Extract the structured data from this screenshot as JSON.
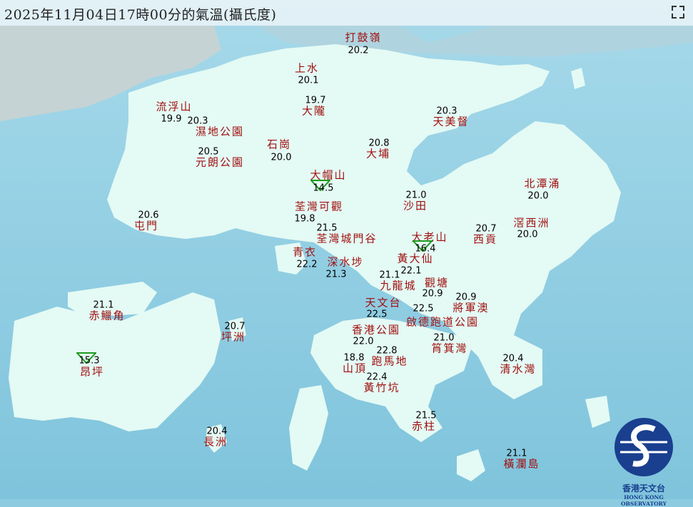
{
  "title": "2025年11月04日17時00分的氣溫(攝氏度)",
  "colors": {
    "sea": "#8ccbe0",
    "land": "#e4faf4",
    "station_name": "#a01010",
    "value": "#000000",
    "min_marker": "#1e9a1e"
  },
  "stations": [
    {
      "name": "打鼓嶺",
      "value": "20.2"
    },
    {
      "name": "上水",
      "value": "20.1"
    },
    {
      "name": "大隴",
      "value": "19.7"
    },
    {
      "name": "流浮山",
      "value": "19.9"
    },
    {
      "name": "濕地公園",
      "value": "20.3"
    },
    {
      "name": "天美督",
      "value": "20.3"
    },
    {
      "name": "石崗",
      "value": "20.0"
    },
    {
      "name": "大埔",
      "value": "20.8"
    },
    {
      "name": "元朗公園",
      "value": "20.5"
    },
    {
      "name": "大帽山",
      "value": "14.5"
    },
    {
      "name": "北潭涌",
      "value": "20.0"
    },
    {
      "name": "沙田",
      "value": "21.0"
    },
    {
      "name": "荃灣可觀",
      "value": "19.8"
    },
    {
      "name": "屯門",
      "value": "20.6"
    },
    {
      "name": "西貢",
      "value": "20.7"
    },
    {
      "name": "滘西洲",
      "value": "20.0"
    },
    {
      "name": "荃灣城門谷",
      "value": "21.5"
    },
    {
      "name": "大老山",
      "value": "16.4"
    },
    {
      "name": "青衣",
      "value": "22.2"
    },
    {
      "name": "深水埗",
      "value": "21.3"
    },
    {
      "name": "黃大仙",
      "value": "22.1"
    },
    {
      "name": "九龍城",
      "value": "21.1"
    },
    {
      "name": "觀塘",
      "value": "20.9"
    },
    {
      "name": "赤鱲角",
      "value": "21.1"
    },
    {
      "name": "天文台",
      "value": "22.5"
    },
    {
      "name": "將軍澳",
      "value": "20.9"
    },
    {
      "name": "啟德跑道公園",
      "value": "22.5"
    },
    {
      "name": "坪洲",
      "value": "20.7"
    },
    {
      "name": "香港公園",
      "value": "22.0"
    },
    {
      "name": "筲箕灣",
      "value": "21.0"
    },
    {
      "name": "跑馬地",
      "value": "22.8"
    },
    {
      "name": "山頂",
      "value": "18.8"
    },
    {
      "name": "昂坪",
      "value": "15.3"
    },
    {
      "name": "清水灣",
      "value": "20.4"
    },
    {
      "name": "黃竹坑",
      "value": "22.4"
    },
    {
      "name": "赤柱",
      "value": "21.5"
    },
    {
      "name": "長洲",
      "value": "20.4"
    },
    {
      "name": "橫瀾島",
      "value": "21.1"
    }
  ],
  "min_markers": [
    "大帽山",
    "大老山",
    "昂坪"
  ],
  "logo": {
    "cn": "香港天文台",
    "en": "HONG KONG OBSERVATORY"
  },
  "icons": {
    "expand": "expand-icon",
    "logo": "hko-logo-icon",
    "min": "triangle-down-icon"
  }
}
